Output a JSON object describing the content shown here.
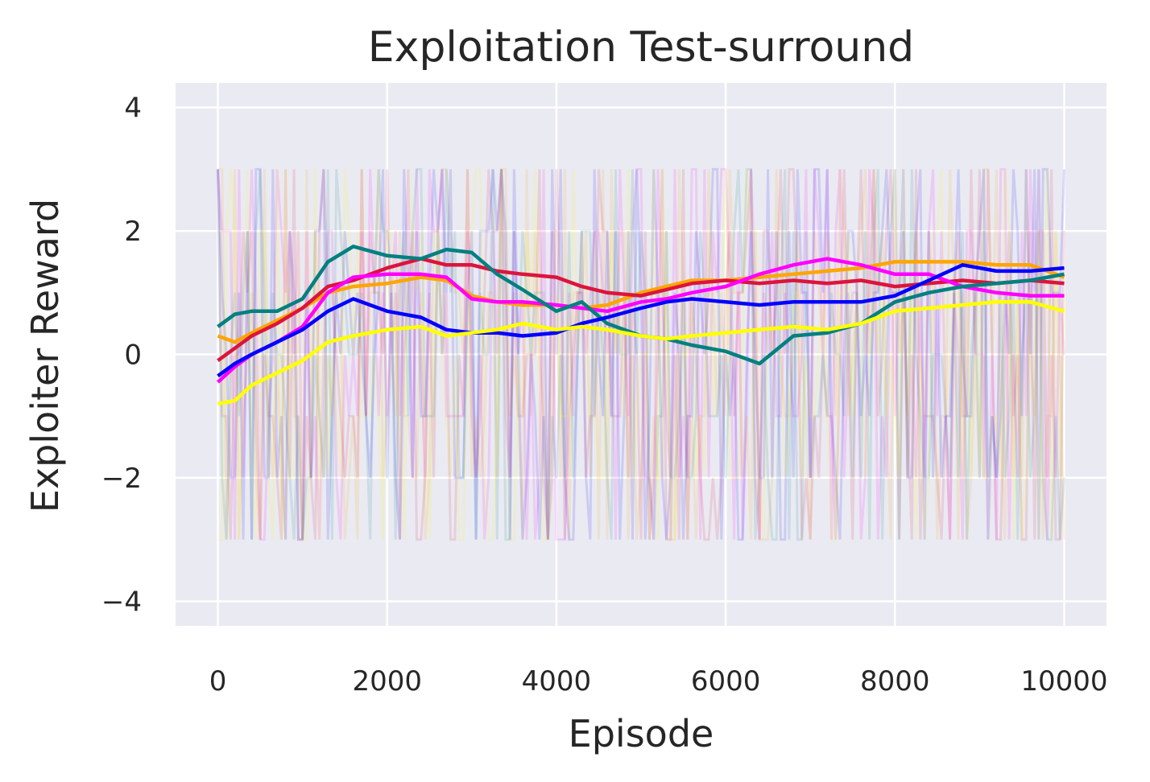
{
  "chart_data": {
    "type": "line",
    "title": "Exploitation Test-surround",
    "xlabel": "Episode",
    "ylabel": "Exploiter Reward",
    "xlim": [
      -500,
      10500
    ],
    "ylim": [
      -4.4,
      4.4
    ],
    "xticks": [
      0,
      2000,
      4000,
      6000,
      8000,
      10000
    ],
    "yticks": [
      -4,
      -2,
      0,
      2,
      4
    ],
    "xtick_labels": [
      "0",
      "2000",
      "4000",
      "6000",
      "8000",
      "10000"
    ],
    "ytick_labels": [
      "−4",
      "−2",
      "0",
      "2",
      "4"
    ],
    "grid": true,
    "background": "#eaeaf2",
    "series": [
      {
        "color": "#ffa500",
        "x": [
          0,
          200,
          400,
          700,
          1000,
          1300,
          1600,
          2000,
          2400,
          2700,
          3000,
          3300,
          3600,
          4000,
          4300,
          4600,
          5000,
          5300,
          5600,
          6000,
          6400,
          6800,
          7200,
          7600,
          8000,
          8400,
          8800,
          9200,
          9600,
          10000
        ],
        "values": [
          0.3,
          0.2,
          0.35,
          0.55,
          0.75,
          1.0,
          1.1,
          1.15,
          1.25,
          1.2,
          0.95,
          0.85,
          0.8,
          0.8,
          0.75,
          0.8,
          1.0,
          1.1,
          1.2,
          1.2,
          1.25,
          1.3,
          1.35,
          1.4,
          1.5,
          1.5,
          1.5,
          1.45,
          1.45,
          1.25
        ]
      },
      {
        "color": "#dc143c",
        "x": [
          0,
          200,
          400,
          700,
          1000,
          1300,
          1600,
          2000,
          2400,
          2700,
          3000,
          3300,
          3600,
          4000,
          4300,
          4600,
          5000,
          5300,
          5600,
          6000,
          6400,
          6800,
          7200,
          7600,
          8000,
          8400,
          8800,
          9200,
          9600,
          10000
        ],
        "values": [
          -0.1,
          0.1,
          0.3,
          0.5,
          0.75,
          1.1,
          1.2,
          1.4,
          1.55,
          1.45,
          1.45,
          1.35,
          1.3,
          1.25,
          1.1,
          1.0,
          0.95,
          1.05,
          1.15,
          1.2,
          1.15,
          1.2,
          1.15,
          1.2,
          1.1,
          1.15,
          1.2,
          1.15,
          1.2,
          1.15
        ]
      },
      {
        "color": "#ff00ff",
        "x": [
          0,
          200,
          400,
          700,
          1000,
          1300,
          1600,
          2000,
          2400,
          2700,
          3000,
          3300,
          3600,
          4000,
          4300,
          4600,
          5000,
          5300,
          5600,
          6000,
          6400,
          6800,
          7200,
          7600,
          8000,
          8400,
          8800,
          9200,
          9600,
          10000
        ],
        "values": [
          -0.45,
          -0.2,
          0.0,
          0.2,
          0.45,
          1.0,
          1.25,
          1.3,
          1.3,
          1.25,
          0.9,
          0.85,
          0.85,
          0.8,
          0.75,
          0.7,
          0.85,
          0.9,
          1.0,
          1.1,
          1.3,
          1.45,
          1.55,
          1.45,
          1.3,
          1.3,
          1.1,
          1.0,
          0.95,
          0.95
        ]
      },
      {
        "color": "#008080",
        "x": [
          0,
          200,
          400,
          700,
          1000,
          1300,
          1600,
          2000,
          2400,
          2700,
          3000,
          3300,
          3600,
          4000,
          4300,
          4600,
          5000,
          5300,
          5600,
          6000,
          6400,
          6800,
          7200,
          7600,
          8000,
          8400,
          8800,
          9200,
          9600,
          10000
        ],
        "values": [
          0.45,
          0.65,
          0.7,
          0.7,
          0.9,
          1.5,
          1.75,
          1.6,
          1.55,
          1.7,
          1.65,
          1.3,
          1.05,
          0.7,
          0.85,
          0.5,
          0.3,
          0.25,
          0.15,
          0.05,
          -0.15,
          0.3,
          0.35,
          0.5,
          0.85,
          1.0,
          1.1,
          1.15,
          1.2,
          1.3
        ]
      },
      {
        "color": "#0000ff",
        "x": [
          0,
          200,
          400,
          700,
          1000,
          1300,
          1600,
          2000,
          2400,
          2700,
          3000,
          3300,
          3600,
          4000,
          4300,
          4600,
          5000,
          5300,
          5600,
          6000,
          6400,
          6800,
          7200,
          7600,
          8000,
          8400,
          8800,
          9200,
          9600,
          10000
        ],
        "values": [
          -0.35,
          -0.15,
          0.0,
          0.2,
          0.4,
          0.7,
          0.9,
          0.7,
          0.6,
          0.4,
          0.35,
          0.35,
          0.3,
          0.35,
          0.5,
          0.6,
          0.75,
          0.85,
          0.9,
          0.85,
          0.8,
          0.85,
          0.85,
          0.85,
          0.95,
          1.2,
          1.45,
          1.35,
          1.35,
          1.4
        ]
      },
      {
        "color": "#ffff00",
        "x": [
          0,
          200,
          400,
          700,
          1000,
          1300,
          1600,
          2000,
          2400,
          2700,
          3000,
          3300,
          3600,
          4000,
          4300,
          4600,
          5000,
          5300,
          5600,
          6000,
          6400,
          6800,
          7200,
          7600,
          8000,
          8400,
          8800,
          9200,
          9600,
          10000
        ],
        "values": [
          -0.8,
          -0.75,
          -0.5,
          -0.3,
          -0.1,
          0.2,
          0.3,
          0.4,
          0.45,
          0.3,
          0.35,
          0.4,
          0.5,
          0.4,
          0.45,
          0.4,
          0.3,
          0.25,
          0.3,
          0.35,
          0.4,
          0.45,
          0.4,
          0.5,
          0.7,
          0.75,
          0.8,
          0.85,
          0.85,
          0.7
        ]
      }
    ]
  }
}
